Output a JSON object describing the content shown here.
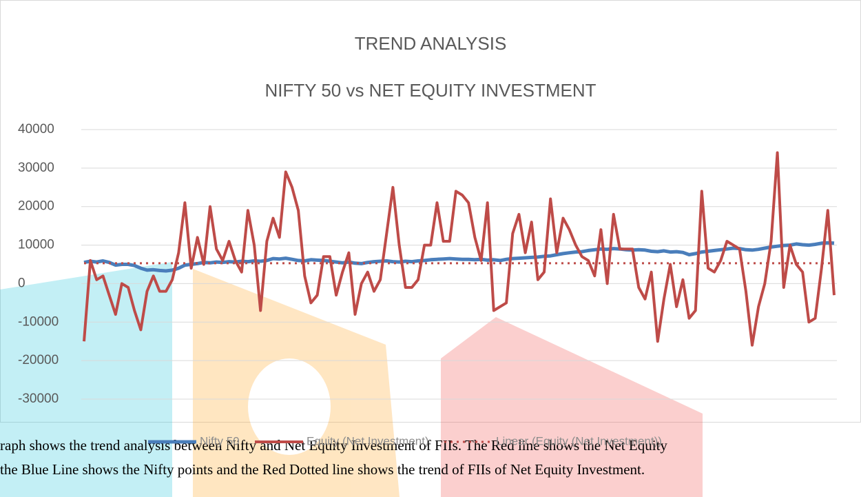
{
  "chart_data": {
    "type": "line",
    "title": "TREND ANALYSIS",
    "subtitle": "NIFTY 50 vs NET EQUITY INVESTMENT",
    "ylim": [
      -30000,
      40000
    ],
    "yticks": [
      -30000,
      -20000,
      -10000,
      0,
      10000,
      20000,
      30000,
      40000
    ],
    "grid": true,
    "legend": "bottom",
    "series": [
      {
        "name": "Nifty 50",
        "color": "#4a7ebb",
        "values": [
          5500,
          5800,
          5600,
          5900,
          5500,
          4800,
          5000,
          5000,
          4700,
          4000,
          3500,
          3600,
          3400,
          3300,
          3500,
          4000,
          4800,
          5000,
          5200,
          5500,
          5400,
          5600,
          5500,
          5700,
          5600,
          5800,
          5700,
          5900,
          5800,
          6000,
          6500,
          6400,
          6600,
          6300,
          6000,
          5900,
          6200,
          6100,
          6000,
          5800,
          5600,
          5400,
          5600,
          5300,
          5200,
          5500,
          5700,
          5800,
          5900,
          5700,
          5600,
          5800,
          5700,
          5900,
          6000,
          6200,
          6300,
          6400,
          6500,
          6400,
          6300,
          6300,
          6200,
          6300,
          6100,
          6200,
          6000,
          6300,
          6500,
          6600,
          6700,
          6800,
          6900,
          7100,
          7200,
          7500,
          7800,
          8000,
          8200,
          8300,
          8600,
          8800,
          9000,
          8900,
          9100,
          9000,
          8800,
          8700,
          8800,
          8700,
          8400,
          8300,
          8500,
          8200,
          8300,
          8100,
          7500,
          7800,
          8200,
          8400,
          8600,
          8800,
          9000,
          9200,
          9100,
          8800,
          8700,
          8900,
          9200,
          9500,
          9700,
          9900,
          10000,
          10300,
          10100,
          10000,
          10200,
          10500,
          10600,
          10500
        ]
      },
      {
        "name": "Equity (Net Investment)",
        "color": "#be4b48",
        "values": [
          -15000,
          6000,
          1000,
          2000,
          -3000,
          -8000,
          0,
          -1000,
          -7000,
          -12000,
          -2000,
          2000,
          -2000,
          -2000,
          1000,
          8000,
          21000,
          4000,
          12000,
          5000,
          20000,
          9000,
          6000,
          11000,
          6000,
          3000,
          19000,
          10000,
          -7000,
          11000,
          17000,
          12000,
          29000,
          25000,
          19000,
          2000,
          -5000,
          -3000,
          7000,
          7000,
          -3000,
          3000,
          8000,
          -8000,
          0,
          3000,
          -2000,
          1000,
          13000,
          25000,
          10000,
          -1000,
          -1000,
          1000,
          10000,
          10000,
          21000,
          11000,
          11000,
          24000,
          23000,
          21000,
          12000,
          6000,
          21000,
          -7000,
          -6000,
          -5000,
          13000,
          18000,
          8000,
          16000,
          1000,
          3000,
          22000,
          8000,
          17000,
          14000,
          10000,
          7000,
          6000,
          2000,
          14000,
          0,
          18000,
          9000,
          9000,
          9000,
          -1000,
          -4000,
          3000,
          -15000,
          -4000,
          5000,
          -6000,
          1000,
          -9000,
          -7000,
          24000,
          4000,
          3000,
          6000,
          11000,
          10000,
          9000,
          -2000,
          -16000,
          -6000,
          0,
          11000,
          34000,
          -1000,
          10000,
          5000,
          3000,
          -10000,
          -9000,
          4000,
          19000,
          -3000
        ]
      }
    ],
    "trendline": {
      "name": "Linear (Equity (Net Investment))",
      "color": "#be4b48",
      "values": [
        5300,
        5300
      ]
    }
  },
  "paragraph": {
    "lines": [
      "raph shows the trend analysis between Nifty and Net Equity Investment  of  FIIs. The Red line shows the Net Equity",
      "the Blue Line shows the Nifty points and the Red Dotted line shows the trend of FIIs of Net Equity Investment."
    ]
  }
}
